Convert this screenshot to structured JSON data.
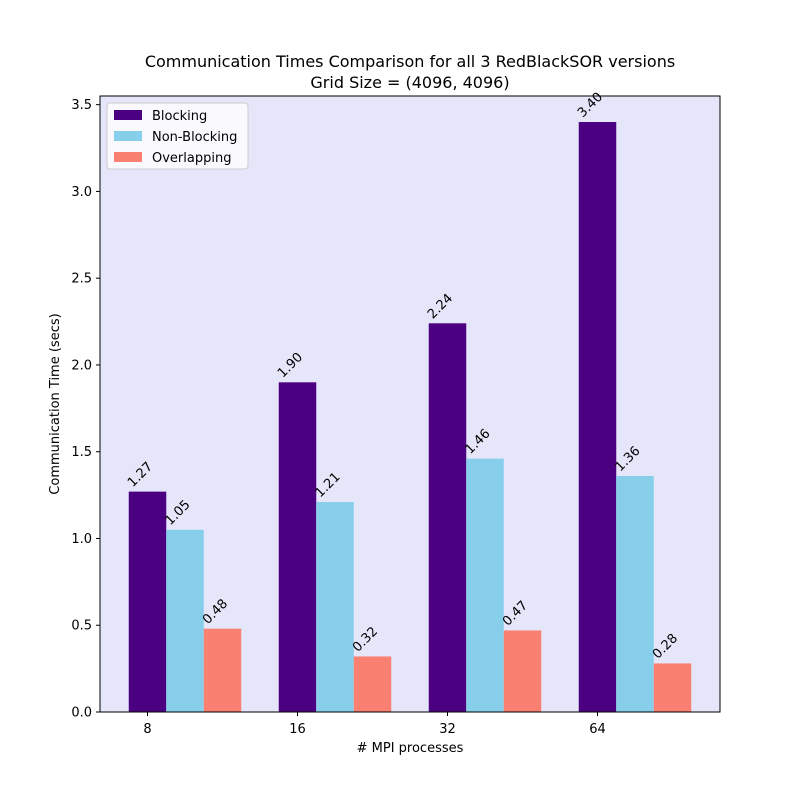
{
  "chart_data": {
    "type": "bar",
    "title": "Communication Times Comparison for all 3 RedBlackSOR versions",
    "subtitle": "Grid Size = (4096, 4096)",
    "xlabel": "# MPI processes",
    "ylabel": "Communication Time (secs)",
    "categories": [
      "8",
      "16",
      "32",
      "64"
    ],
    "series": [
      {
        "name": "Blocking",
        "color": "#4b0082",
        "values": [
          1.27,
          1.9,
          2.24,
          3.4
        ],
        "labels": [
          "1.27",
          "1.90",
          "2.24",
          "3.40"
        ]
      },
      {
        "name": "Non-Blocking",
        "color": "#87ceeb",
        "values": [
          1.05,
          1.21,
          1.46,
          1.36
        ],
        "labels": [
          "1.05",
          "1.21",
          "1.46",
          "1.36"
        ]
      },
      {
        "name": "Overlapping",
        "color": "#fa8072",
        "values": [
          0.48,
          0.32,
          0.47,
          0.28
        ],
        "labels": [
          "0.48",
          "0.32",
          "0.47",
          "0.28"
        ]
      }
    ],
    "ylim": [
      0,
      3.55
    ],
    "yticks": [
      "0.0",
      "0.5",
      "1.0",
      "1.5",
      "2.0",
      "2.5",
      "3.0",
      "3.5"
    ],
    "legend_position": "top-left",
    "grid": false,
    "background_color": "#e6e6fa"
  }
}
